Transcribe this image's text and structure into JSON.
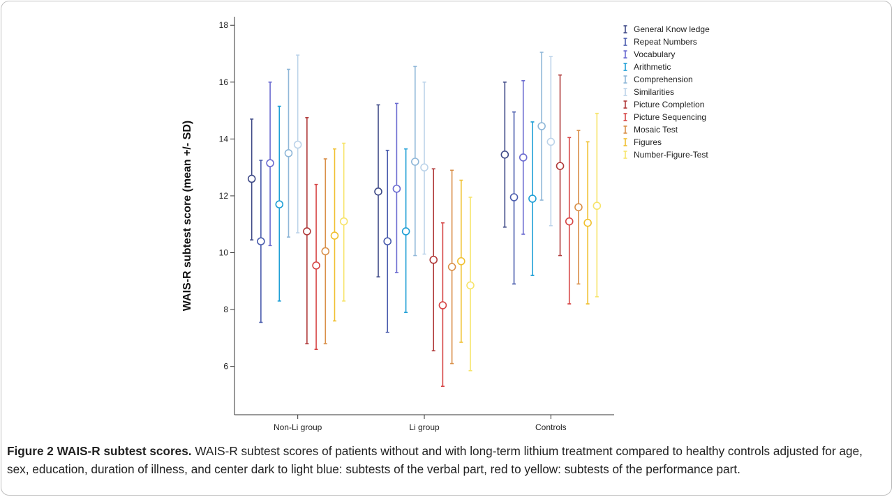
{
  "figure": {
    "caption_title": "Figure 2 WAIS-R subtest scores.",
    "caption_text": "WAIS-R subtest scores of patients without and with long-term lithium treatment compared to healthy controls adjusted for age, sex, education, duration of illness, and center dark to light blue: subtests of the verbal part, red to yellow: subtests of the performance part."
  },
  "chart_data": {
    "type": "errorbar",
    "ylabel": "WAIS-R subtest score (mean +/- SD)",
    "xlabel": "",
    "ylim": [
      4.3,
      18.3
    ],
    "yticks": [
      6,
      8,
      10,
      12,
      14,
      16,
      18
    ],
    "categories": [
      "Non-Li group",
      "Li group",
      "Controls"
    ],
    "legend_position": "top-right",
    "series": [
      {
        "name": "General Know ledge",
        "color": "#3f4a87",
        "mean": [
          12.6,
          12.15,
          13.45
        ],
        "low": [
          10.45,
          9.15,
          10.9
        ],
        "high": [
          14.7,
          15.2,
          16.0
        ]
      },
      {
        "name": "Repeat Numbers",
        "color": "#4a5cad",
        "mean": [
          10.4,
          10.4,
          11.95
        ],
        "low": [
          7.55,
          7.2,
          8.9
        ],
        "high": [
          13.25,
          13.6,
          14.95
        ]
      },
      {
        "name": "Vocabulary",
        "color": "#6a6ad0",
        "mean": [
          13.15,
          12.25,
          13.35
        ],
        "low": [
          10.25,
          9.3,
          10.65
        ],
        "high": [
          16.0,
          15.25,
          16.05
        ]
      },
      {
        "name": "Arithmetic",
        "color": "#1e9fd6",
        "mean": [
          11.7,
          10.75,
          11.9
        ],
        "low": [
          8.3,
          7.9,
          9.2
        ],
        "high": [
          15.15,
          13.65,
          14.6
        ]
      },
      {
        "name": "Comprehension",
        "color": "#8fb7d8",
        "mean": [
          13.5,
          13.2,
          14.45
        ],
        "low": [
          10.55,
          9.9,
          11.85
        ],
        "high": [
          16.45,
          16.55,
          17.05
        ]
      },
      {
        "name": "Similarities",
        "color": "#bdd4ea",
        "mean": [
          13.8,
          13.0,
          13.9
        ],
        "low": [
          10.7,
          9.95,
          10.95
        ],
        "high": [
          16.95,
          16.0,
          16.9
        ]
      },
      {
        "name": "Picture Completion",
        "color": "#b03a3a",
        "mean": [
          10.75,
          9.75,
          13.05
        ],
        "low": [
          6.8,
          6.55,
          9.9
        ],
        "high": [
          14.75,
          12.95,
          16.25
        ]
      },
      {
        "name": "Picture Sequencing",
        "color": "#d64545",
        "mean": [
          9.55,
          8.15,
          11.1
        ],
        "low": [
          6.6,
          5.3,
          8.2
        ],
        "high": [
          12.4,
          11.05,
          14.05
        ]
      },
      {
        "name": "Mosaic Test",
        "color": "#d9904a",
        "mean": [
          10.05,
          9.5,
          11.6
        ],
        "low": [
          6.8,
          6.1,
          8.9
        ],
        "high": [
          13.3,
          12.9,
          14.3
        ]
      },
      {
        "name": "Figures",
        "color": "#f0c030",
        "mean": [
          10.6,
          9.7,
          11.05
        ],
        "low": [
          7.6,
          6.85,
          8.2
        ],
        "high": [
          13.65,
          12.55,
          13.9
        ]
      },
      {
        "name": "Number-Figure-Test",
        "color": "#f7e46a",
        "mean": [
          11.1,
          8.85,
          11.65
        ],
        "low": [
          8.3,
          5.85,
          8.45
        ],
        "high": [
          13.85,
          11.95,
          14.9
        ]
      }
    ]
  }
}
